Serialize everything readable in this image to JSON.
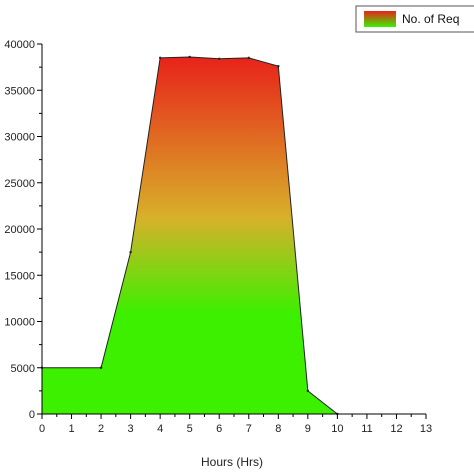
{
  "colors": {
    "gradient_top": "#e8231a",
    "gradient_mid": "#d8b02a",
    "gradient_bottom": "#3cf000",
    "outline": "#222222"
  },
  "chart_data": {
    "type": "area",
    "x": [
      0,
      1,
      2,
      3,
      4,
      5,
      6,
      7,
      8,
      9,
      10,
      11,
      12,
      13
    ],
    "series": [
      {
        "name": "No. of Req",
        "x": [
          0,
          2,
          3,
          4,
          5,
          6,
          7,
          8,
          9,
          10
        ],
        "values": [
          5000,
          5000,
          17500,
          38500,
          38600,
          38400,
          38500,
          37600,
          2500,
          0
        ]
      }
    ],
    "xlabel": "Hours (Hrs)",
    "ylabel": "",
    "xlim": [
      0,
      13
    ],
    "ylim": [
      0,
      40000
    ],
    "xticks": [
      "0",
      "1",
      "2",
      "3",
      "4",
      "5",
      "6",
      "7",
      "8",
      "9",
      "10",
      "11",
      "12",
      "13"
    ],
    "yticks": [
      "0",
      "5000",
      "10000",
      "15000",
      "20000",
      "25000",
      "30000",
      "35000",
      "40000"
    ],
    "grid": false,
    "legend": "top-right"
  }
}
